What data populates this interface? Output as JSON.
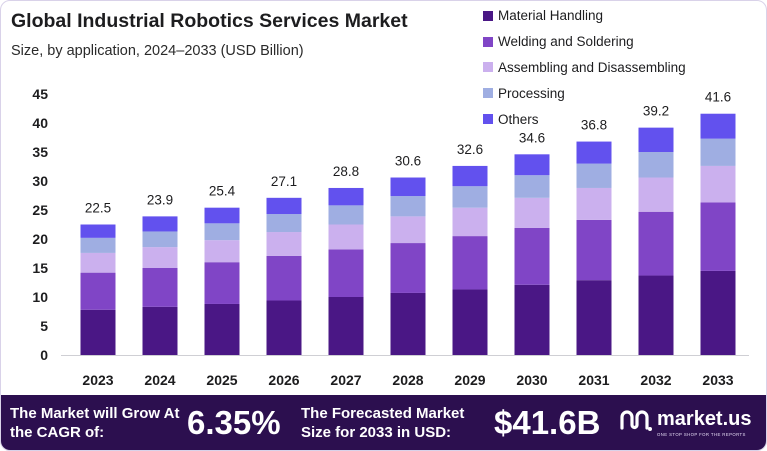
{
  "title": "Global Industrial Robotics Services Market",
  "subtitle": "Size, by application, 2024–2033 (USD Billion)",
  "chart_data": {
    "type": "bar",
    "stacked": true,
    "title": "Global Industrial Robotics Services Market",
    "subtitle": "Size, by application, 2024–2033 (USD Billion)",
    "categories": [
      "2023",
      "2024",
      "2025",
      "2026",
      "2027",
      "2028",
      "2029",
      "2030",
      "2031",
      "2032",
      "2033"
    ],
    "series": [
      {
        "name": "Material Handling",
        "color": "#4a1785",
        "values": [
          7.8,
          8.3,
          8.8,
          9.4,
          10.0,
          10.7,
          11.3,
          12.1,
          12.9,
          13.7,
          14.5
        ]
      },
      {
        "name": "Welding and Soldering",
        "color": "#8045c6",
        "values": [
          6.4,
          6.7,
          7.2,
          7.7,
          8.2,
          8.6,
          9.2,
          9.8,
          10.4,
          11.0,
          11.8
        ]
      },
      {
        "name": "Assembling and Disassembling",
        "color": "#cbb0ee",
        "values": [
          3.4,
          3.6,
          3.8,
          4.1,
          4.3,
          4.6,
          4.9,
          5.2,
          5.5,
          5.9,
          6.3
        ]
      },
      {
        "name": "Processing",
        "color": "#9faee2",
        "values": [
          2.6,
          2.7,
          2.9,
          3.1,
          3.3,
          3.5,
          3.7,
          3.9,
          4.2,
          4.4,
          4.7
        ]
      },
      {
        "name": "Others",
        "color": "#6251ee",
        "values": [
          2.3,
          2.6,
          2.7,
          2.8,
          3.0,
          3.2,
          3.5,
          3.6,
          3.8,
          4.2,
          4.3
        ]
      }
    ],
    "totals": [
      "22.5",
      "23.9",
      "25.4",
      "27.1",
      "28.8",
      "30.6",
      "32.6",
      "34.6",
      "36.8",
      "39.2",
      "41.6"
    ],
    "y_ticks": [
      0,
      5,
      10,
      15,
      20,
      25,
      30,
      35,
      40,
      45
    ],
    "ylim": [
      0,
      45
    ],
    "xlabel": "",
    "ylabel": "",
    "grid": false,
    "legend_position": "top-right"
  },
  "footer": {
    "cagr_label": "The Market will Grow At the CAGR of:",
    "cagr_value": "6.35%",
    "size_label": "The Forecasted Market Size for 2033 in USD:",
    "size_value": "$41.6B",
    "brand_name": "market.us",
    "brand_tagline": "ONE STOP SHOP FOR THE REPORTS",
    "background_color": "#2c0f4f"
  }
}
